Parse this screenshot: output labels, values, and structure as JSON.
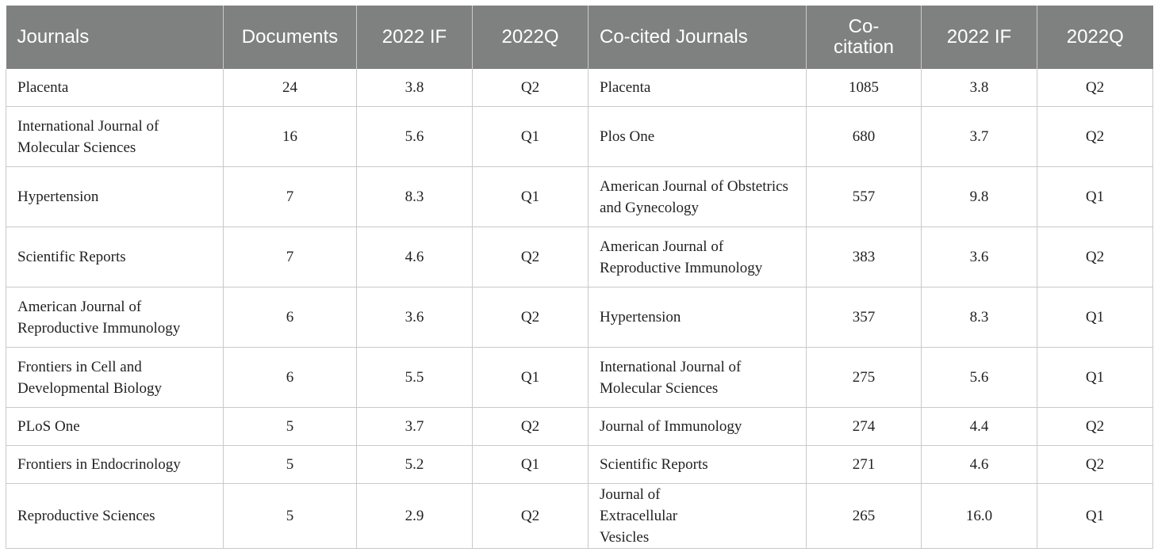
{
  "headers": [
    "Journals",
    "Documents",
    "2022 IF",
    "2022Q",
    "Co-cited Journals",
    "Co-\ncitation",
    "2022 IF",
    "2022Q"
  ],
  "rows": [
    [
      "Placenta",
      "24",
      "3.8",
      "Q2",
      "Placenta",
      "1085",
      "3.8",
      "Q2"
    ],
    [
      "International Journal of Molecular Sciences",
      "16",
      "5.6",
      "Q1",
      "Plos One",
      "680",
      "3.7",
      "Q2"
    ],
    [
      "Hypertension",
      "7",
      "8.3",
      "Q1",
      "American Journal of Obstetrics and Gynecology",
      "557",
      "9.8",
      "Q1"
    ],
    [
      "Scientific Reports",
      "7",
      "4.6",
      "Q2",
      "American Journal of Reproductive Immunology",
      "383",
      "3.6",
      "Q2"
    ],
    [
      "American Journal of Reproductive Immunology",
      "6",
      "3.6",
      "Q2",
      "Hypertension",
      "357",
      "8.3",
      "Q1"
    ],
    [
      "Frontiers in Cell and Developmental Biology",
      "6",
      "5.5",
      "Q1",
      "International Journal of Molecular Sciences",
      "275",
      "5.6",
      "Q1"
    ],
    [
      "PLoS One",
      "5",
      "3.7",
      "Q2",
      "Journal of Immunology",
      "274",
      "4.4",
      "Q2"
    ],
    [
      "Frontiers in Endocrinology",
      "5",
      "5.2",
      "Q1",
      "Scientific Reports",
      "271",
      "4.6",
      "Q2"
    ],
    [
      "Reproductive Sciences",
      "5",
      "2.9",
      "Q2",
      "Journal of Extracellular Vesicles",
      "265",
      "16.0",
      "Q1"
    ]
  ],
  "colors": {
    "header_bg": "#7f8180",
    "header_text": "#ffffff",
    "grid": "#c9c9c9"
  }
}
